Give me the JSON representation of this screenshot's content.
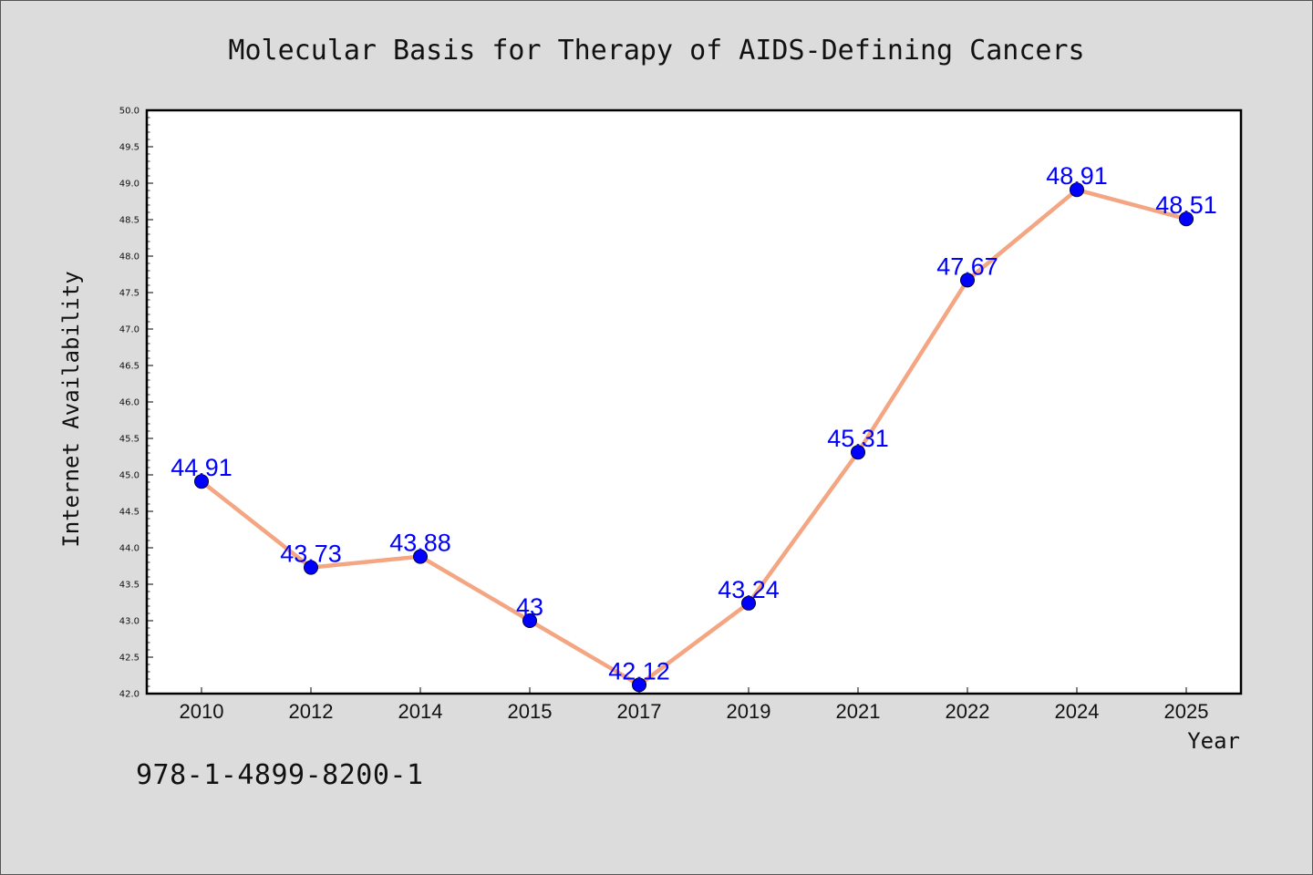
{
  "chart_data": {
    "type": "line",
    "title": "Molecular Basis for Therapy of AIDS-Defining Cancers",
    "xlabel": "Year",
    "ylabel": "Internet Availability",
    "categories": [
      "2010",
      "2012",
      "2014",
      "2015",
      "2017",
      "2019",
      "2021",
      "2022",
      "2024",
      "2025"
    ],
    "values": [
      44.91,
      43.73,
      43.88,
      43,
      42.12,
      43.24,
      45.31,
      47.67,
      48.91,
      48.51
    ],
    "data_labels": [
      "44.91",
      "43.73",
      "43.88",
      "43",
      "42.12",
      "43.24",
      "45.31",
      "47.67",
      "48.91",
      "48.51"
    ],
    "ylim": [
      42.0,
      50.0
    ],
    "y_ticks": [
      "42.0",
      "42.5",
      "43.0",
      "43.5",
      "44.0",
      "44.5",
      "45.0",
      "45.5",
      "46.0",
      "46.5",
      "47.0",
      "47.5",
      "48.0",
      "48.5",
      "49.0",
      "49.5",
      "50.0"
    ],
    "grid": false,
    "legend": "none",
    "colors": {
      "line": "#f4a582",
      "marker": "#0000ff",
      "label": "#0000ff",
      "background": "#dcdcdc",
      "plot_background": "#ffffff"
    }
  },
  "footer": {
    "isbn": "978-1-4899-8200-1"
  }
}
